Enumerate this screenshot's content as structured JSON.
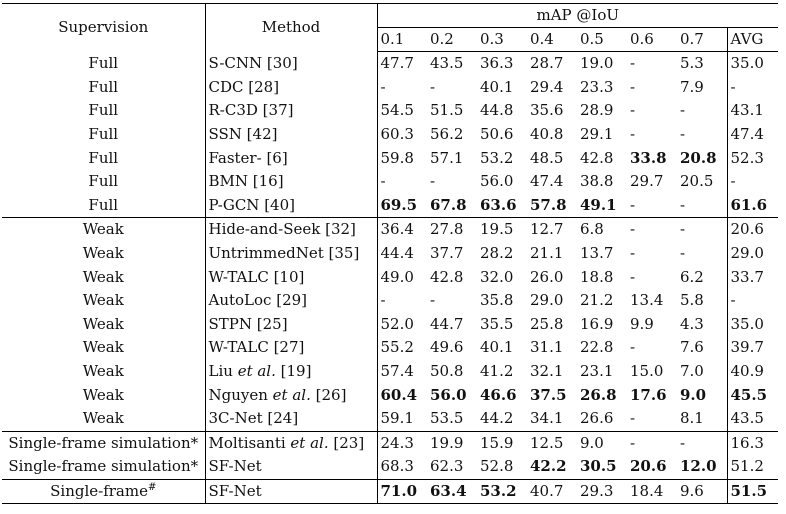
{
  "header": {
    "supervision": "Supervision",
    "method": "Method",
    "metric": "mAP @IoU",
    "thresholds": [
      "0.1",
      "0.2",
      "0.3",
      "0.4",
      "0.5",
      "0.6",
      "0.7",
      "AVG"
    ]
  },
  "rows": [
    {
      "sup": "Full",
      "method": "S-CNN [30]",
      "vals": [
        "47.7",
        "43.5",
        "36.3",
        "28.7",
        "19.0",
        "-",
        "5.3",
        "35.0"
      ],
      "bold": []
    },
    {
      "sup": "Full",
      "method": "CDC [28]",
      "vals": [
        "-",
        "-",
        "40.1",
        "29.4",
        "23.3",
        "-",
        "7.9",
        "-"
      ],
      "bold": []
    },
    {
      "sup": "Full",
      "method": "R-C3D [37]",
      "vals": [
        "54.5",
        "51.5",
        "44.8",
        "35.6",
        "28.9",
        "-",
        "-",
        "43.1"
      ],
      "bold": []
    },
    {
      "sup": "Full",
      "method": "SSN [42]",
      "vals": [
        "60.3",
        "56.2",
        "50.6",
        "40.8",
        "29.1",
        "-",
        "-",
        "47.4"
      ],
      "bold": []
    },
    {
      "sup": "Full",
      "method": "Faster- [6]",
      "vals": [
        "59.8",
        "57.1",
        "53.2",
        "48.5",
        "42.8",
        "33.8",
        "20.8",
        "52.3"
      ],
      "bold": [
        5,
        6
      ]
    },
    {
      "sup": "Full",
      "method": "BMN [16]",
      "vals": [
        "-",
        "-",
        "56.0",
        "47.4",
        "38.8",
        "29.7",
        "20.5",
        "-"
      ],
      "bold": []
    },
    {
      "sup": "Full",
      "method": "P-GCN [40]",
      "vals": [
        "69.5",
        "67.8",
        "63.6",
        "57.8",
        "49.1",
        "-",
        "-",
        "61.6"
      ],
      "bold": [
        0,
        1,
        2,
        3,
        4,
        7
      ]
    },
    {
      "sup": "Weak",
      "method": "Hide-and-Seek [32]",
      "vals": [
        "36.4",
        "27.8",
        "19.5",
        "12.7",
        "6.8",
        "-",
        "-",
        "20.6"
      ],
      "bold": []
    },
    {
      "sup": "Weak",
      "method": "UntrimmedNet [35]",
      "vals": [
        "44.4",
        "37.7",
        "28.2",
        "21.1",
        "13.7",
        "-",
        "-",
        "29.0"
      ],
      "bold": []
    },
    {
      "sup": "Weak",
      "method": "W-TALC [10]",
      "vals": [
        "49.0",
        "42.8",
        "32.0",
        "26.0",
        "18.8",
        "-",
        "6.2",
        "33.7"
      ],
      "bold": []
    },
    {
      "sup": "Weak",
      "method": "AutoLoc [29]",
      "vals": [
        "-",
        "-",
        "35.8",
        "29.0",
        "21.2",
        "13.4",
        "5.8",
        "-"
      ],
      "bold": []
    },
    {
      "sup": "Weak",
      "method": "STPN [25]",
      "vals": [
        "52.0",
        "44.7",
        "35.5",
        "25.8",
        "16.9",
        "9.9",
        "4.3",
        "35.0"
      ],
      "bold": []
    },
    {
      "sup": "Weak",
      "method": "W-TALC [27]",
      "vals": [
        "55.2",
        "49.6",
        "40.1",
        "31.1",
        "22.8",
        "-",
        "7.6",
        "39.7"
      ],
      "bold": []
    },
    {
      "sup": "Weak",
      "method_pre": "Liu ",
      "method_it": "et al.",
      "method_post": " [19]",
      "vals": [
        "57.4",
        "50.8",
        "41.2",
        "32.1",
        "23.1",
        "15.0",
        "7.0",
        "40.9"
      ],
      "bold": []
    },
    {
      "sup": "Weak",
      "method_pre": "Nguyen ",
      "method_it": "et al.",
      "method_post": " [26]",
      "vals": [
        "60.4",
        "56.0",
        "46.6",
        "37.5",
        "26.8",
        "17.6",
        "9.0",
        "45.5"
      ],
      "bold": [
        0,
        1,
        2,
        3,
        4,
        5,
        6,
        7
      ]
    },
    {
      "sup": "Weak",
      "method": "3C-Net [24]",
      "vals": [
        "59.1",
        "53.5",
        "44.2",
        "34.1",
        "26.6",
        "-",
        "8.1",
        "43.5"
      ],
      "bold": []
    },
    {
      "sup": "Single-frame simulation*",
      "method_pre": "Moltisanti ",
      "method_it": "et al.",
      "method_post": " [23]",
      "vals": [
        "24.3",
        "19.9",
        "15.9",
        "12.5",
        "9.0",
        "-",
        "-",
        "16.3"
      ],
      "bold": []
    },
    {
      "sup": "Single-frame simulation*",
      "method": "SF-Net",
      "vals": [
        "68.3",
        "62.3",
        "52.8",
        "42.2",
        "30.5",
        "20.6",
        "12.0",
        "51.2"
      ],
      "bold": [
        3,
        4,
        5,
        6
      ]
    },
    {
      "sup": "Single-frame",
      "sup_mark": "#",
      "method": "SF-Net",
      "vals": [
        "71.0",
        "63.4",
        "53.2",
        "40.7",
        "29.3",
        "18.4",
        "9.6",
        "51.5"
      ],
      "bold": [
        0,
        1,
        2,
        7
      ]
    }
  ]
}
